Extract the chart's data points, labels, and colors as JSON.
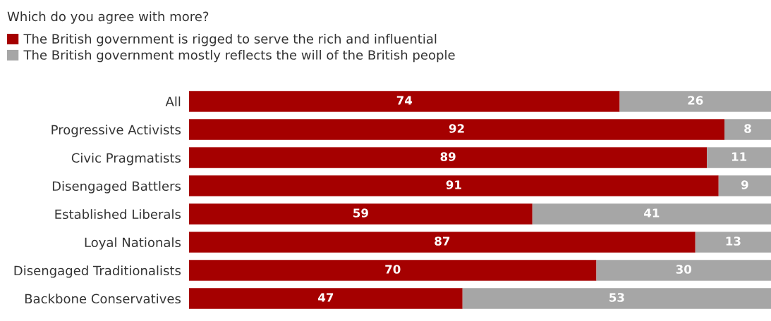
{
  "chart_data": {
    "type": "bar",
    "orientation": "horizontal",
    "stacked": true,
    "subtitle": "Which do you agree with more?",
    "categories": [
      "All",
      "Progressive Activists",
      "Civic Pragmatists",
      "Disengaged Battlers",
      "Established Liberals",
      "Loyal Nationals",
      "Disengaged Traditionalists",
      "Backbone Conservatives"
    ],
    "series": [
      {
        "name": "The British government is rigged to serve the rich and influential",
        "color": "#a50000",
        "values": [
          74,
          92,
          89,
          91,
          59,
          87,
          70,
          47
        ]
      },
      {
        "name": "The British government mostly reflects the will of the British people",
        "color": "#a6a6a6",
        "values": [
          26,
          8,
          11,
          9,
          41,
          13,
          30,
          53
        ]
      }
    ],
    "xlim": [
      0,
      100
    ],
    "tick_labels": "y",
    "data_labels": true,
    "legend": "top left"
  }
}
